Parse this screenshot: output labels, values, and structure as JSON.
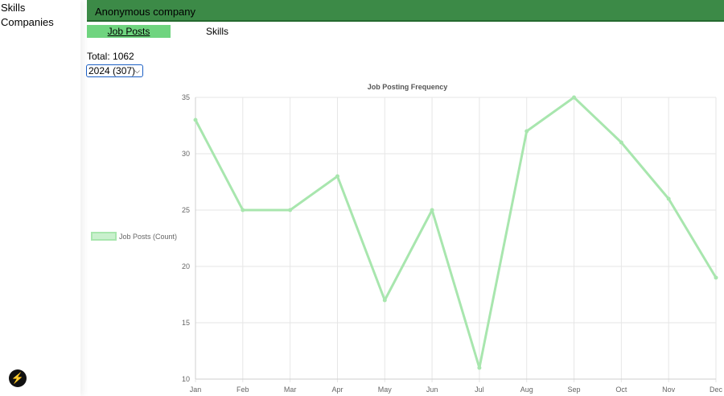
{
  "sidebar": {
    "items": [
      {
        "label": "Skills"
      },
      {
        "label": "Companies"
      }
    ]
  },
  "header": {
    "title": "Anonymous company"
  },
  "tabs": [
    {
      "label": "Job Posts",
      "active": true
    },
    {
      "label": "Skills",
      "active": false
    }
  ],
  "summary": {
    "total_label": "Total: 1062"
  },
  "year_select": {
    "value": "2024 (307)"
  },
  "colors": {
    "header_bg": "#3c8a47",
    "tab_active": "#6fd47f",
    "line": "#a8e6ae"
  },
  "chart_data": {
    "type": "line",
    "title": "Job Posting Frequency",
    "categories": [
      "Jan",
      "Feb",
      "Mar",
      "Apr",
      "May",
      "Jun",
      "Jul",
      "Aug",
      "Sep",
      "Oct",
      "Nov",
      "Dec"
    ],
    "series": [
      {
        "name": "Job Posts (Count)",
        "values": [
          33,
          25,
          25,
          28,
          17,
          25,
          11,
          32,
          35,
          31,
          26,
          19
        ]
      }
    ],
    "ylim": [
      10,
      35
    ],
    "yticks": [
      10,
      15,
      20,
      25,
      30,
      35
    ],
    "grid": true,
    "legend": "left"
  }
}
